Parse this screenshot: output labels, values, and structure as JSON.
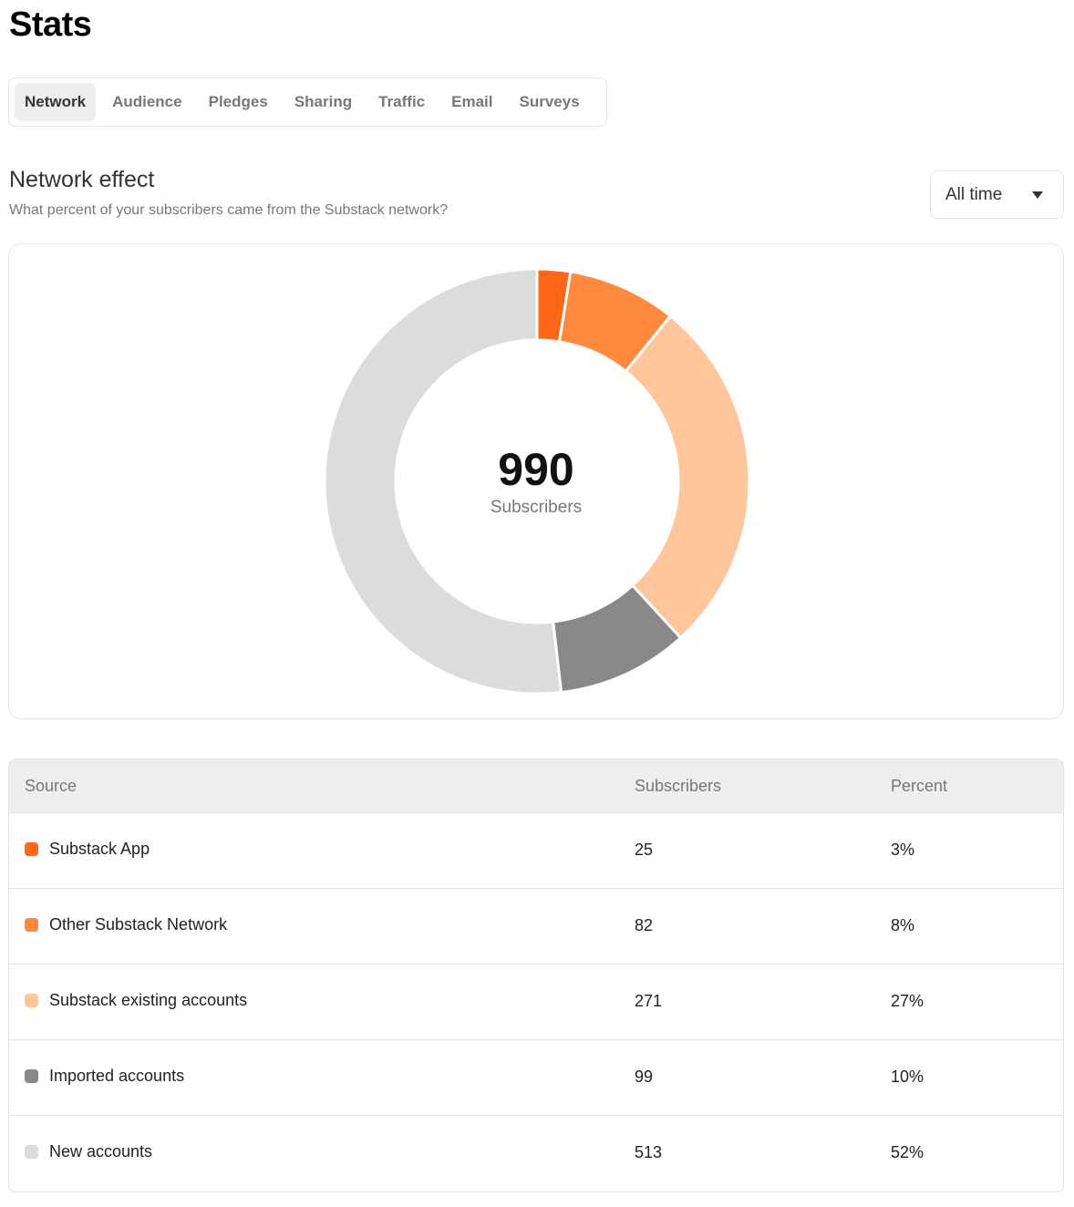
{
  "page": {
    "title": "Stats"
  },
  "tabs": [
    {
      "label": "Network",
      "active": true
    },
    {
      "label": "Audience",
      "active": false
    },
    {
      "label": "Pledges",
      "active": false
    },
    {
      "label": "Sharing",
      "active": false
    },
    {
      "label": "Traffic",
      "active": false
    },
    {
      "label": "Email",
      "active": false
    },
    {
      "label": "Surveys",
      "active": false
    }
  ],
  "section": {
    "title": "Network effect",
    "subtitle": "What percent of your subscribers came from the Substack network?"
  },
  "range_dropdown": {
    "value": "All time",
    "icon": "caret-down-icon"
  },
  "donut": {
    "total": "990",
    "total_label": "Subscribers"
  },
  "chart_data": {
    "type": "pie",
    "categories": [
      "Substack App",
      "Other Substack Network",
      "Substack existing accounts",
      "Imported accounts",
      "New accounts"
    ],
    "values": [
      25,
      82,
      271,
      99,
      513
    ],
    "colors": [
      "#ff6719",
      "#ff8a3d",
      "#ffc59b",
      "#888888",
      "#dcdcdc"
    ],
    "style": "donut"
  },
  "table": {
    "headers": {
      "source": "Source",
      "subscribers": "Subscribers",
      "percent": "Percent"
    },
    "rows": [
      {
        "source": "Substack App",
        "subscribers": "25",
        "percent": "3%",
        "color": "#ff6719"
      },
      {
        "source": "Other Substack Network",
        "subscribers": "82",
        "percent": "8%",
        "color": "#ff8a3d"
      },
      {
        "source": "Substack existing accounts",
        "subscribers": "271",
        "percent": "27%",
        "color": "#ffc59b"
      },
      {
        "source": "Imported accounts",
        "subscribers": "99",
        "percent": "10%",
        "color": "#888888"
      },
      {
        "source": "New accounts",
        "subscribers": "513",
        "percent": "52%",
        "color": "#dcdcdc"
      }
    ]
  }
}
